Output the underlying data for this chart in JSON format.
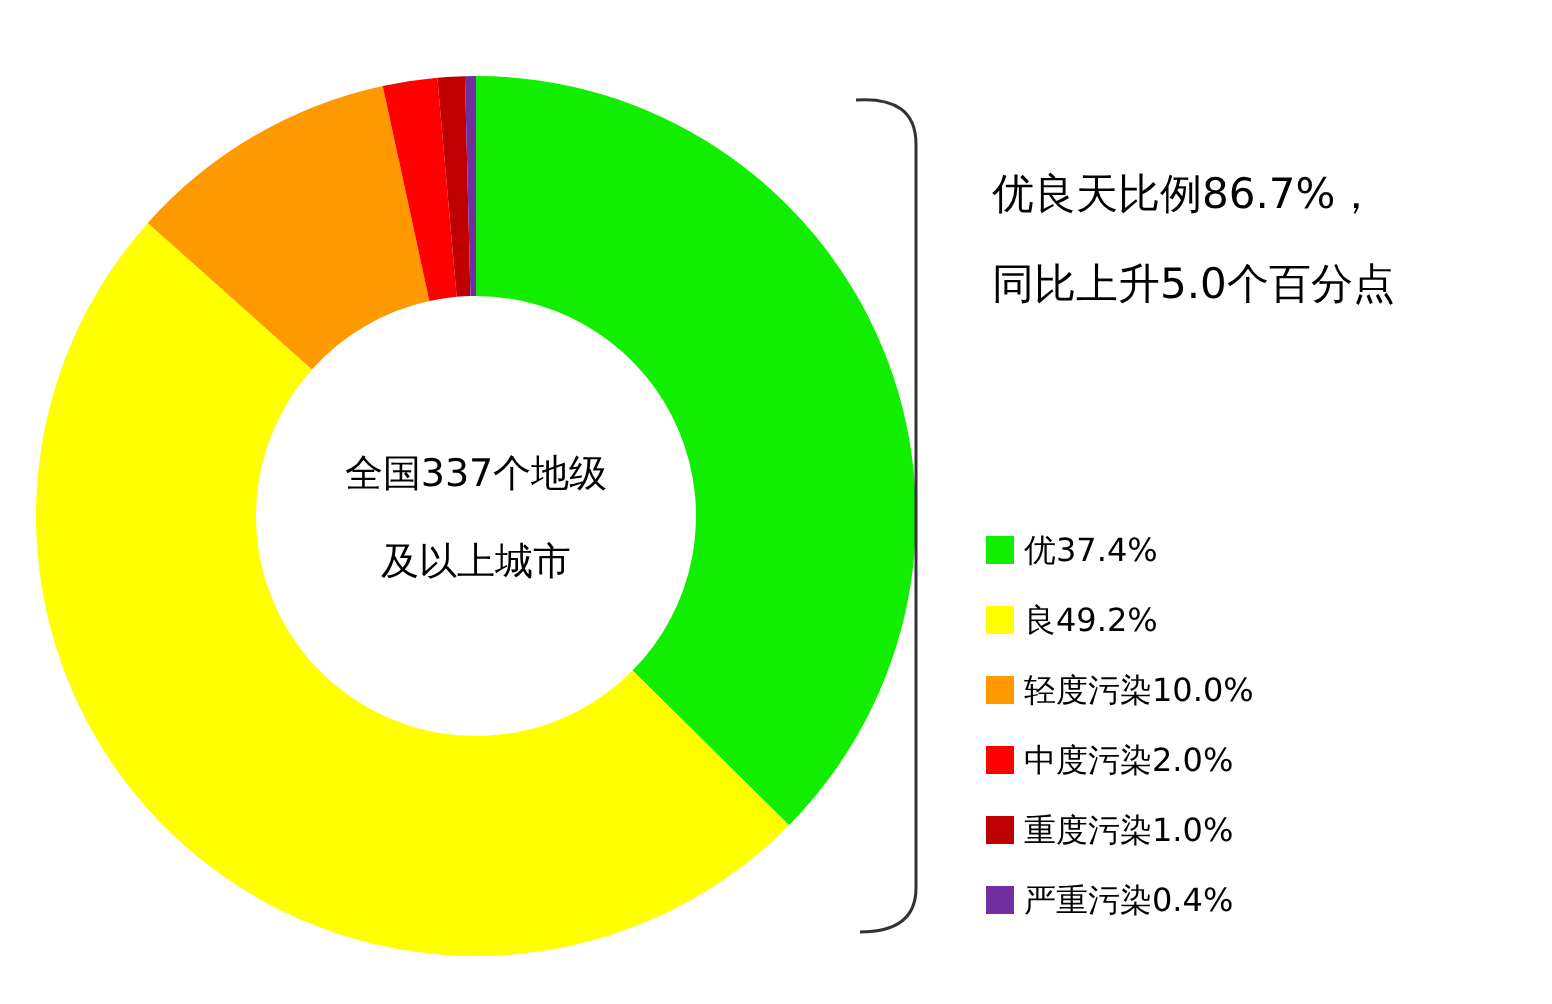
{
  "chart_data": {
    "type": "donut",
    "categories": [
      "优37.4%",
      "良49.2%",
      "轻度污染10.0%",
      "中度污染2.0%",
      "重度污染1.0%",
      "严重污染0.4%"
    ],
    "values": [
      37.4,
      49.2,
      10.0,
      2.0,
      1.0,
      0.4
    ],
    "colors": [
      "#11ee00",
      "#ffff00",
      "#ff9900",
      "#ff0000",
      "#c00000",
      "#7030a0"
    ],
    "legend": "right",
    "annotations": [
      "优良天比例86.7%，",
      "同比上升5.0个百分点",
      "全国337个地级",
      "及以上城市"
    ]
  }
}
